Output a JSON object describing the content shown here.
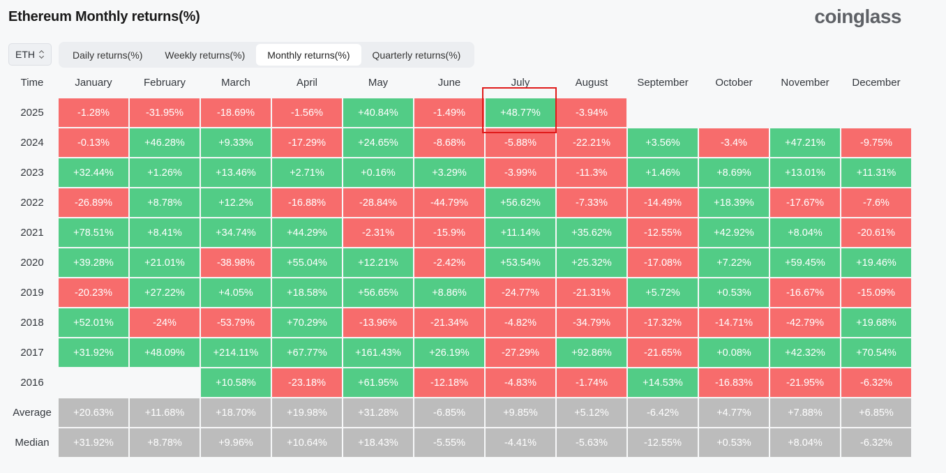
{
  "title": "Ethereum Monthly returns(%)",
  "brand": "coinglass",
  "asset_select": {
    "value": "ETH"
  },
  "tabs": [
    {
      "label": "Daily returns(%)",
      "active": false
    },
    {
      "label": "Weekly returns(%)",
      "active": false
    },
    {
      "label": "Monthly returns(%)",
      "active": true
    },
    {
      "label": "Quarterly returns(%)",
      "active": false
    }
  ],
  "colors": {
    "positive": "#52cc86",
    "negative": "#f76c6c",
    "stat": "#bcbcbc",
    "highlight": "#e01b1b"
  },
  "table": {
    "time_header": "Time",
    "months": [
      "January",
      "February",
      "March",
      "April",
      "May",
      "June",
      "July",
      "August",
      "September",
      "October",
      "November",
      "December"
    ],
    "rows": [
      {
        "year": "2025",
        "values": [
          "-1.28%",
          "-31.95%",
          "-18.69%",
          "-1.56%",
          "+40.84%",
          "-1.49%",
          "+48.77%",
          "-3.94%",
          "",
          "",
          "",
          ""
        ]
      },
      {
        "year": "2024",
        "values": [
          "-0.13%",
          "+46.28%",
          "+9.33%",
          "-17.29%",
          "+24.65%",
          "-8.68%",
          "-5.88%",
          "-22.21%",
          "+3.56%",
          "-3.4%",
          "+47.21%",
          "-9.75%"
        ]
      },
      {
        "year": "2023",
        "values": [
          "+32.44%",
          "+1.26%",
          "+13.46%",
          "+2.71%",
          "+0.16%",
          "+3.29%",
          "-3.99%",
          "-11.3%",
          "+1.46%",
          "+8.69%",
          "+13.01%",
          "+11.31%"
        ]
      },
      {
        "year": "2022",
        "values": [
          "-26.89%",
          "+8.78%",
          "+12.2%",
          "-16.88%",
          "-28.84%",
          "-44.79%",
          "+56.62%",
          "-7.33%",
          "-14.49%",
          "+18.39%",
          "-17.67%",
          "-7.6%"
        ]
      },
      {
        "year": "2021",
        "values": [
          "+78.51%",
          "+8.41%",
          "+34.74%",
          "+44.29%",
          "-2.31%",
          "-15.9%",
          "+11.14%",
          "+35.62%",
          "-12.55%",
          "+42.92%",
          "+8.04%",
          "-20.61%"
        ]
      },
      {
        "year": "2020",
        "values": [
          "+39.28%",
          "+21.01%",
          "-38.98%",
          "+55.04%",
          "+12.21%",
          "-2.42%",
          "+53.54%",
          "+25.32%",
          "-17.08%",
          "+7.22%",
          "+59.45%",
          "+19.46%"
        ]
      },
      {
        "year": "2019",
        "values": [
          "-20.23%",
          "+27.22%",
          "+4.05%",
          "+18.58%",
          "+56.65%",
          "+8.86%",
          "-24.77%",
          "-21.31%",
          "+5.72%",
          "+0.53%",
          "-16.67%",
          "-15.09%"
        ]
      },
      {
        "year": "2018",
        "values": [
          "+52.01%",
          "-24%",
          "-53.79%",
          "+70.29%",
          "-13.96%",
          "-21.34%",
          "-4.82%",
          "-34.79%",
          "-17.32%",
          "-14.71%",
          "-42.79%",
          "+19.68%"
        ]
      },
      {
        "year": "2017",
        "values": [
          "+31.92%",
          "+48.09%",
          "+214.11%",
          "+67.77%",
          "+161.43%",
          "+26.19%",
          "-27.29%",
          "+92.86%",
          "-21.65%",
          "+0.08%",
          "+42.32%",
          "+70.54%"
        ]
      },
      {
        "year": "2016",
        "values": [
          "",
          "",
          "+10.58%",
          "-23.18%",
          "+61.95%",
          "-12.18%",
          "-4.83%",
          "-1.74%",
          "+14.53%",
          "-16.83%",
          "-21.95%",
          "-6.32%"
        ]
      }
    ],
    "summary": [
      {
        "label": "Average",
        "values": [
          "+20.63%",
          "+11.68%",
          "+18.70%",
          "+19.98%",
          "+31.28%",
          "-6.85%",
          "+9.85%",
          "+5.12%",
          "-6.42%",
          "+4.77%",
          "+7.88%",
          "+6.85%"
        ]
      },
      {
        "label": "Median",
        "values": [
          "+31.92%",
          "+8.78%",
          "+9.96%",
          "+10.64%",
          "+18.43%",
          "-5.55%",
          "-4.41%",
          "-5.63%",
          "-12.55%",
          "+0.53%",
          "+8.04%",
          "-6.32%"
        ]
      }
    ]
  }
}
